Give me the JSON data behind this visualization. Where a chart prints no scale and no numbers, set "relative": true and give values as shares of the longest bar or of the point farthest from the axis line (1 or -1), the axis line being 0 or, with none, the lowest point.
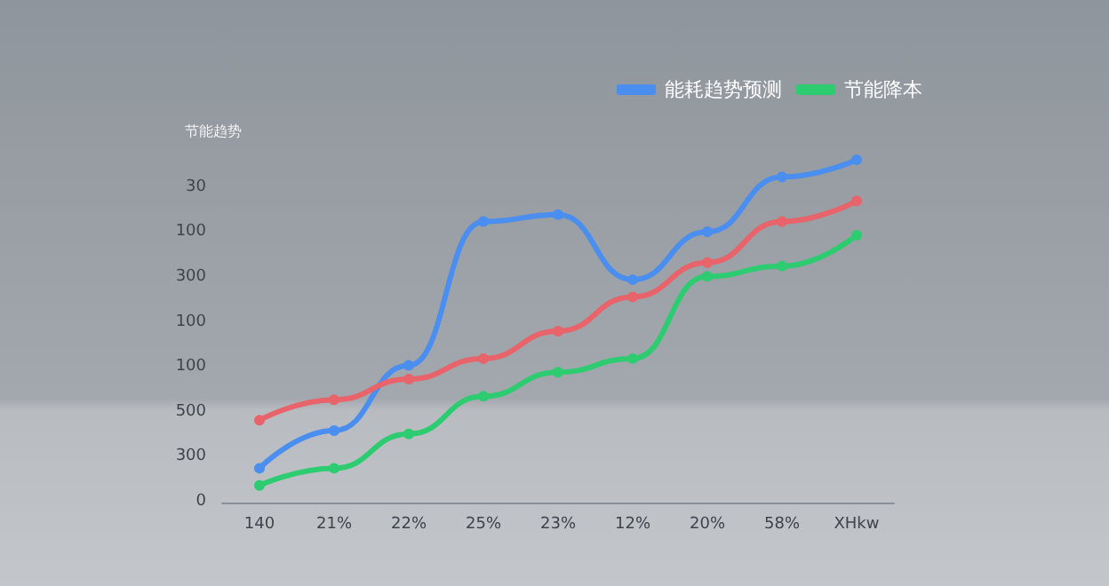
{
  "chart_data": {
    "type": "line",
    "relative": true,
    "ylabel": "节能趋势",
    "categories": [
      "140",
      "21%",
      "22%",
      "25%",
      "23%",
      "12%",
      "20%",
      "58%",
      "XHkw"
    ],
    "series": [
      {
        "name": "能耗趋势预测",
        "color": "#4a8ef0",
        "values": [
          0.1,
          0.21,
          0.4,
          0.82,
          0.84,
          0.65,
          0.79,
          0.95,
          1
        ]
      },
      {
        "color": "#e8636a",
        "values": [
          0.24,
          0.3,
          0.36,
          0.42,
          0.5,
          0.6,
          0.7,
          0.82,
          0.88
        ]
      },
      {
        "name": "节能降本",
        "color": "#2ecc71",
        "values": [
          0.05,
          0.1,
          0.2,
          0.31,
          0.38,
          0.42,
          0.66,
          0.69,
          0.78
        ]
      }
    ],
    "annotations": [
      "0",
      "300",
      "500",
      "100",
      "100",
      "300",
      "100",
      "30"
    ],
    "legend": "top right",
    "marker": "circle",
    "line_style": "solid"
  }
}
